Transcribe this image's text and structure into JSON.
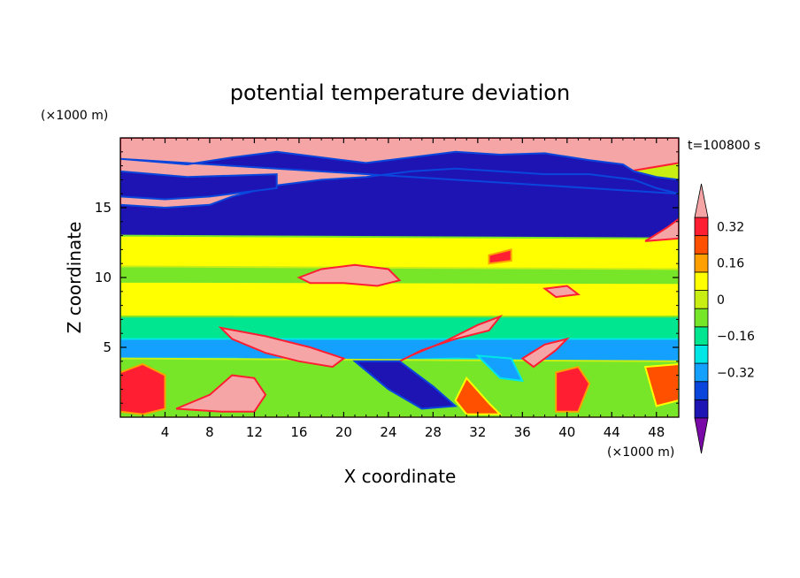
{
  "chart_data": {
    "type": "heatmap",
    "title": "potential temperature deviation",
    "xlabel": "X coordinate",
    "ylabel": "Z coordinate",
    "x_unit_label": "(×1000 m)",
    "y_unit_label": "(×1000 m)",
    "time_label": "t=100800 s",
    "xlim": [
      0,
      50
    ],
    "ylim": [
      0,
      20
    ],
    "x_ticks": [
      4,
      8,
      12,
      16,
      20,
      24,
      28,
      32,
      36,
      40,
      44,
      48
    ],
    "y_ticks": [
      5,
      10,
      15
    ],
    "x_tick_labels": [
      "4",
      "8",
      "12",
      "16",
      "20",
      "24",
      "28",
      "32",
      "36",
      "40",
      "44",
      "48"
    ],
    "y_tick_labels": [
      "5",
      "10",
      "15"
    ],
    "colorbar": {
      "levels": [
        -0.48,
        -0.4,
        -0.32,
        -0.24,
        -0.16,
        -0.08,
        0,
        0.08,
        0.16,
        0.24,
        0.32,
        0.4
      ],
      "colors": [
        "#7a0aa8",
        "#1e14b4",
        "#0a46dc",
        "#14a0ff",
        "#00e6e6",
        "#00e690",
        "#78e628",
        "#c8ee14",
        "#ffff00",
        "#ffa000",
        "#ff5000",
        "#ff1e32",
        "#f5a5a5"
      ],
      "tick_values": [
        -0.32,
        -0.16,
        0,
        0.16,
        0.32
      ],
      "tick_labels": [
        "−0.32",
        "−0.16",
        "0",
        "0.16",
        "0.32"
      ],
      "extend": "both",
      "position": "right"
    },
    "regions": [
      {
        "name": "upper-warm-layer",
        "value": 0.45,
        "pts": [
          [
            0,
            20
          ],
          [
            50,
            20
          ],
          [
            50,
            18.2
          ],
          [
            44,
            17.4
          ],
          [
            40,
            17.0
          ],
          [
            36,
            16.6
          ],
          [
            32,
            16.4
          ],
          [
            28,
            16.2
          ],
          [
            24,
            16.0
          ],
          [
            20,
            15.6
          ],
          [
            16,
            15.2
          ],
          [
            14,
            14.9
          ],
          [
            12,
            14.7
          ],
          [
            10,
            14.4
          ],
          [
            8,
            14.2
          ],
          [
            4,
            14.4
          ],
          [
            0,
            14.6
          ]
        ]
      },
      {
        "name": "upper-cold-layer",
        "value": -0.45,
        "pts": [
          [
            0,
            18.5
          ],
          [
            6,
            18.1
          ],
          [
            10,
            18.6
          ],
          [
            14,
            19.0
          ],
          [
            18,
            18.6
          ],
          [
            22,
            18.2
          ],
          [
            26,
            18.6
          ],
          [
            30,
            19.0
          ],
          [
            34,
            18.8
          ],
          [
            38,
            18.9
          ],
          [
            42,
            18.4
          ],
          [
            45,
            18.1
          ],
          [
            46,
            17.6
          ],
          [
            48,
            17.2
          ],
          [
            50,
            17.0
          ],
          [
            50,
            12.6
          ],
          [
            40,
            12.5
          ],
          [
            30,
            12.3
          ],
          [
            20,
            12.6
          ],
          [
            10,
            12.6
          ],
          [
            0,
            12.8
          ],
          [
            0,
            15.2
          ],
          [
            4,
            15.0
          ],
          [
            8,
            15.2
          ],
          [
            10,
            15.8
          ],
          [
            12,
            16.2
          ],
          [
            14,
            16.6
          ],
          [
            18,
            17.0
          ],
          [
            22,
            17.2
          ],
          [
            26,
            17.6
          ],
          [
            30,
            17.8
          ],
          [
            34,
            17.6
          ],
          [
            38,
            17.4
          ],
          [
            42,
            17.4
          ],
          [
            46,
            17.0
          ],
          [
            48,
            16.4
          ],
          [
            50,
            16.0
          ]
        ]
      },
      {
        "name": "upper-cold-strip",
        "value": -0.45,
        "pts": [
          [
            0,
            17.6
          ],
          [
            6,
            17.2
          ],
          [
            10,
            17.3
          ],
          [
            14,
            17.4
          ],
          [
            14,
            16.4
          ],
          [
            8,
            15.8
          ],
          [
            4,
            15.6
          ],
          [
            0,
            15.8
          ]
        ]
      },
      {
        "name": "mid-band-top",
        "value": 0.08,
        "pts": [
          [
            0,
            13.0
          ],
          [
            50,
            12.8
          ],
          [
            50,
            10.6
          ],
          [
            40,
            10.5
          ],
          [
            30,
            10.4
          ],
          [
            20,
            10.5
          ],
          [
            10,
            10.6
          ],
          [
            0,
            10.8
          ]
        ]
      },
      {
        "name": "mid-band-cyan",
        "value": -0.08,
        "pts": [
          [
            0,
            10.8
          ],
          [
            50,
            10.6
          ],
          [
            50,
            9.6
          ],
          [
            40,
            9.4
          ],
          [
            30,
            9.2
          ],
          [
            20,
            9.4
          ],
          [
            10,
            9.5
          ],
          [
            0,
            9.7
          ]
        ]
      },
      {
        "name": "mid-band-green",
        "value": 0.08,
        "pts": [
          [
            0,
            9.7
          ],
          [
            50,
            9.6
          ],
          [
            50,
            7.2
          ],
          [
            40,
            7.0
          ],
          [
            30,
            6.8
          ],
          [
            20,
            7.0
          ],
          [
            10,
            7.2
          ],
          [
            0,
            7.2
          ]
        ]
      },
      {
        "name": "low-band-cyan",
        "value": -0.16,
        "pts": [
          [
            0,
            7.2
          ],
          [
            50,
            7.2
          ],
          [
            50,
            5.6
          ],
          [
            40,
            5.6
          ],
          [
            30,
            5.4
          ],
          [
            20,
            5.6
          ],
          [
            10,
            5.6
          ],
          [
            0,
            5.6
          ]
        ]
      },
      {
        "name": "low-band-blue",
        "value": -0.32,
        "pts": [
          [
            0,
            5.6
          ],
          [
            50,
            5.6
          ],
          [
            50,
            4.0
          ],
          [
            40,
            4.0
          ],
          [
            30,
            4.2
          ],
          [
            20,
            4.0
          ],
          [
            10,
            4.2
          ],
          [
            0,
            4.2
          ]
        ]
      },
      {
        "name": "surface-band",
        "value": -0.08,
        "pts": [
          [
            0,
            4.2
          ],
          [
            50,
            4.0
          ],
          [
            50,
            0
          ],
          [
            0,
            0
          ]
        ]
      },
      {
        "name": "warm-lens-mid",
        "value": 0.45,
        "pts": [
          [
            16,
            10.0
          ],
          [
            18,
            10.6
          ],
          [
            21,
            10.9
          ],
          [
            24,
            10.6
          ],
          [
            25,
            9.8
          ],
          [
            23,
            9.4
          ],
          [
            20,
            9.6
          ],
          [
            17,
            9.6
          ]
        ]
      },
      {
        "name": "warm-tongue-low",
        "value": 0.45,
        "pts": [
          [
            9,
            6.4
          ],
          [
            13,
            5.8
          ],
          [
            17,
            5.0
          ],
          [
            20,
            4.2
          ],
          [
            19,
            3.6
          ],
          [
            16,
            4.0
          ],
          [
            13,
            4.6
          ],
          [
            10,
            5.6
          ]
        ]
      },
      {
        "name": "warm-tongue-right",
        "value": 0.45,
        "pts": [
          [
            24,
            3.6
          ],
          [
            27,
            4.8
          ],
          [
            30,
            5.6
          ],
          [
            33,
            6.2
          ],
          [
            34,
            7.2
          ],
          [
            32,
            6.6
          ],
          [
            29,
            5.4
          ],
          [
            26,
            4.4
          ]
        ]
      },
      {
        "name": "warm-streak-right",
        "value": 0.45,
        "pts": [
          [
            36,
            4.2
          ],
          [
            38,
            5.2
          ],
          [
            40,
            5.6
          ],
          [
            39,
            4.8
          ],
          [
            37,
            3.6
          ]
        ]
      },
      {
        "name": "warm-blob-left",
        "value": 0.45,
        "pts": [
          [
            5,
            0.6
          ],
          [
            8,
            1.6
          ],
          [
            10,
            3.0
          ],
          [
            12,
            2.8
          ],
          [
            13,
            1.6
          ],
          [
            12,
            0.4
          ],
          [
            9,
            0.4
          ]
        ]
      },
      {
        "name": "warm-surface-left",
        "value": 0.32,
        "pts": [
          [
            0,
            3.2
          ],
          [
            2,
            3.8
          ],
          [
            4,
            3.0
          ],
          [
            4,
            0.6
          ],
          [
            2,
            0.2
          ],
          [
            0,
            0.4
          ]
        ]
      },
      {
        "name": "cold-trough-center",
        "value": -0.45,
        "pts": [
          [
            21,
            4.0
          ],
          [
            24,
            2.0
          ],
          [
            27,
            0.6
          ],
          [
            30,
            0.8
          ],
          [
            28,
            2.2
          ],
          [
            25,
            4.0
          ]
        ]
      },
      {
        "name": "cold-trough-right",
        "value": -0.32,
        "pts": [
          [
            32,
            4.4
          ],
          [
            34,
            2.8
          ],
          [
            36,
            2.6
          ],
          [
            35,
            4.2
          ]
        ]
      },
      {
        "name": "warm-surface-center",
        "value": 0.24,
        "pts": [
          [
            31,
            2.8
          ],
          [
            33,
            1.0
          ],
          [
            34,
            0.2
          ],
          [
            31,
            0.2
          ],
          [
            30,
            1.2
          ]
        ]
      },
      {
        "name": "warm-surface-right",
        "value": 0.32,
        "pts": [
          [
            39,
            3.2
          ],
          [
            41,
            3.6
          ],
          [
            42,
            2.4
          ],
          [
            41,
            0.4
          ],
          [
            39,
            0.4
          ]
        ]
      },
      {
        "name": "warm-surface-edge",
        "value": 0.24,
        "pts": [
          [
            47,
            3.6
          ],
          [
            50,
            3.8
          ],
          [
            50,
            1.2
          ],
          [
            48,
            0.8
          ]
        ]
      },
      {
        "name": "warm-patch-upper-right",
        "value": 0.45,
        "pts": [
          [
            47,
            12.6
          ],
          [
            49,
            13.6
          ],
          [
            50,
            14.2
          ],
          [
            50,
            12.8
          ]
        ]
      },
      {
        "name": "warm-patch-11k",
        "value": 0.32,
        "pts": [
          [
            33,
            11.6
          ],
          [
            35,
            12.0
          ],
          [
            35,
            11.2
          ],
          [
            33,
            11.0
          ]
        ]
      },
      {
        "name": "warm-patch-9k",
        "value": 0.45,
        "pts": [
          [
            38,
            9.2
          ],
          [
            40,
            9.4
          ],
          [
            41,
            8.8
          ],
          [
            39,
            8.6
          ]
        ]
      }
    ]
  }
}
